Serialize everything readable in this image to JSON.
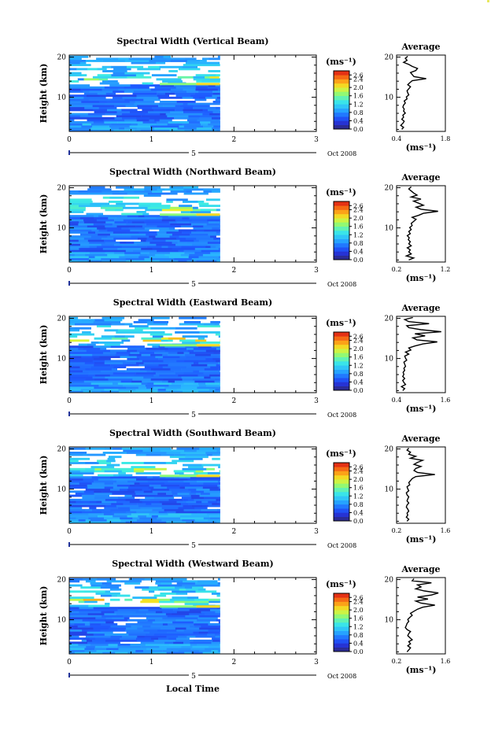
{
  "common": {
    "ylabel": "Height (km)",
    "xlabel": "Local Time",
    "date_label": "Oct 2008",
    "day_label": "5",
    "unit_label": "(ms⁻¹)",
    "avg_title": "Average",
    "x_ticks": [
      "0",
      "1",
      "2",
      "3"
    ],
    "y_ticks": [
      "20",
      "10"
    ],
    "colorbar_ticks": [
      "2.6",
      "2.4",
      "2.0",
      "1.6",
      "1.2",
      "0.8",
      "0.4",
      "0.0"
    ]
  },
  "chart_data": [
    {
      "type": "heatmap",
      "title": "Spectral Width (Vertical Beam)",
      "xlabel": "",
      "ylabel": "Height (km)",
      "xlim": [
        0,
        3
      ],
      "ylim": [
        1.5,
        20.5
      ],
      "data_end_x": 1.83,
      "clim": [
        0.0,
        2.8
      ],
      "avg_profile": {
        "title": "Average",
        "xlabel": "(ms⁻¹)",
        "xlim": [
          0.4,
          1.8
        ],
        "x_ticks": [
          "0.4",
          "1.8"
        ],
        "values": [
          0.55,
          0.6,
          0.52,
          0.58,
          0.62,
          0.55,
          0.6,
          0.58,
          0.65,
          0.6,
          0.62,
          0.58,
          0.6,
          0.65,
          0.62,
          0.7,
          0.68,
          0.75,
          0.72,
          0.7,
          0.75,
          0.8,
          0.72,
          0.78,
          0.85,
          1.25,
          0.9,
          0.85,
          0.8,
          0.95,
          1.0,
          0.85,
          0.75,
          0.6,
          0.7,
          0.65,
          0.72
        ]
      }
    },
    {
      "type": "heatmap",
      "title": "Spectral Width (Northward Beam)",
      "xlabel": "",
      "ylabel": "Height (km)",
      "xlim": [
        0,
        3
      ],
      "ylim": [
        1.5,
        20.5
      ],
      "data_end_x": 1.83,
      "clim": [
        0.0,
        2.8
      ],
      "avg_profile": {
        "title": "Average",
        "xlabel": "(ms⁻¹)",
        "xlim": [
          0.2,
          1.2
        ],
        "x_ticks": [
          "0.2",
          "1.2"
        ],
        "values": [
          0.45,
          0.55,
          0.4,
          0.5,
          0.45,
          0.48,
          0.42,
          0.5,
          0.45,
          0.48,
          0.44,
          0.46,
          0.42,
          0.48,
          0.45,
          0.5,
          0.47,
          0.52,
          0.5,
          0.55,
          0.6,
          0.52,
          0.65,
          0.75,
          1.05,
          0.7,
          0.6,
          0.75,
          0.65,
          0.55,
          0.7,
          0.5,
          0.62,
          0.55,
          0.5,
          0.45,
          0.5
        ]
      }
    },
    {
      "type": "heatmap",
      "title": "Spectral Width (Eastward Beam)",
      "xlabel": "",
      "ylabel": "Height (km)",
      "xlim": [
        0,
        3
      ],
      "ylim": [
        1.5,
        20.5
      ],
      "data_end_x": 1.83,
      "clim": [
        0.0,
        2.8
      ],
      "avg_profile": {
        "title": "Average",
        "xlabel": "(ms⁻¹)",
        "xlim": [
          0.4,
          1.6
        ],
        "x_ticks": [
          "0.4",
          "1.6"
        ],
        "values": [
          0.55,
          0.6,
          0.52,
          0.62,
          0.58,
          0.55,
          0.6,
          0.55,
          0.58,
          0.56,
          0.6,
          0.58,
          0.62,
          0.6,
          0.58,
          0.65,
          0.62,
          0.6,
          0.7,
          0.62,
          0.75,
          0.7,
          0.85,
          1.05,
          1.4,
          0.9,
          0.8,
          1.1,
          0.85,
          1.5,
          1.0,
          0.7,
          0.65,
          1.2,
          0.7,
          0.6,
          0.8
        ]
      }
    },
    {
      "type": "heatmap",
      "title": "Spectral Width (Southward Beam)",
      "xlabel": "",
      "ylabel": "Height (km)",
      "xlim": [
        0,
        3
      ],
      "ylim": [
        1.5,
        20.5
      ],
      "data_end_x": 1.83,
      "clim": [
        0.0,
        2.8
      ],
      "avg_profile": {
        "title": "Average",
        "xlabel": "(ms⁻¹)",
        "xlim": [
          0.2,
          1.6
        ],
        "x_ticks": [
          "0.2",
          "1.6"
        ],
        "values": [
          0.5,
          0.55,
          0.48,
          0.52,
          0.5,
          0.55,
          0.52,
          0.48,
          0.5,
          0.55,
          0.5,
          0.52,
          0.55,
          0.5,
          0.48,
          0.55,
          0.52,
          0.5,
          0.58,
          0.55,
          0.6,
          0.65,
          0.75,
          1.3,
          0.8,
          0.7,
          0.75,
          0.9,
          0.7,
          0.8,
          0.95,
          0.6,
          0.75,
          0.55,
          0.6,
          0.5,
          0.55
        ]
      }
    },
    {
      "type": "heatmap",
      "title": "Spectral Width (Westward Beam)",
      "xlabel": "Local Time",
      "ylabel": "Height (km)",
      "xlim": [
        0,
        3
      ],
      "ylim": [
        1.5,
        20.5
      ],
      "data_end_x": 1.83,
      "clim": [
        0.0,
        2.8
      ],
      "avg_profile": {
        "title": "Average",
        "xlabel": "(ms⁻¹)",
        "xlim": [
          0.2,
          1.6
        ],
        "x_ticks": [
          "0.2",
          "1.6"
        ],
        "values": [
          0.5,
          0.55,
          0.6,
          0.52,
          0.6,
          0.55,
          0.65,
          0.58,
          0.52,
          0.55,
          0.6,
          0.5,
          0.45,
          0.48,
          0.5,
          0.55,
          0.52,
          0.58,
          0.65,
          0.6,
          0.7,
          0.8,
          0.95,
          1.3,
          0.9,
          0.75,
          1.1,
          0.8,
          1.2,
          1.4,
          1.0,
          0.75,
          0.9,
          0.8,
          1.2,
          0.65,
          0.7
        ]
      }
    }
  ]
}
